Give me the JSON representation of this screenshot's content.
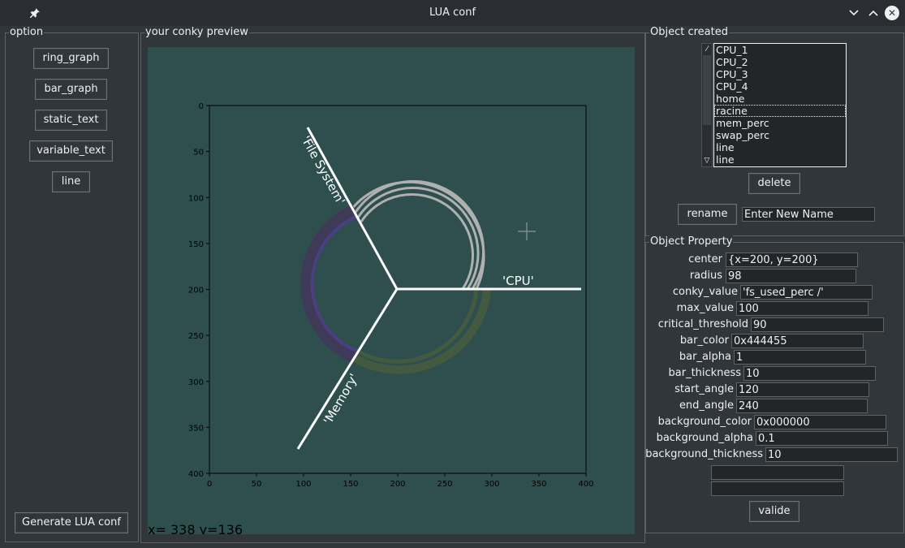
{
  "window": {
    "title": "LUA conf",
    "pin_icon": "pin-icon",
    "minimize_icon": "chevron-down-icon",
    "maximize_icon": "chevron-up-icon",
    "close_icon": "close-icon"
  },
  "option_panel": {
    "label": "option",
    "buttons": [
      "ring_graph",
      "bar_graph",
      "static_text",
      "variable_text",
      "line"
    ],
    "generate_label": "Generate LUA conf"
  },
  "preview": {
    "label": "your conky preview",
    "cursor_readout": "x= 338 y=136",
    "cursor_icon": "crosshair-icon",
    "x_ticks": [
      "0",
      "50",
      "100",
      "150",
      "200",
      "250",
      "300",
      "350",
      "400"
    ],
    "y_ticks": [
      "0",
      "50",
      "100",
      "150",
      "200",
      "250",
      "300",
      "350",
      "400"
    ],
    "text_labels": [
      "'CPU'",
      "'File System'",
      "'Memory'"
    ],
    "colors": {
      "canvas_bg": "#2f4f4f",
      "plot_bg": "#2f4f4f",
      "ring_grey": "#b0b0b0",
      "ring_purple": "#483d6b",
      "ring_green": "#445a40",
      "line": "#ffffff"
    }
  },
  "objects_panel": {
    "label": "Object created",
    "items": [
      "CPU_1",
      "CPU_2",
      "CPU_3",
      "CPU_4",
      "home",
      "racine",
      "mem_perc",
      "swap_perc",
      "line",
      "line"
    ],
    "selected_index": 5,
    "delete_label": "delete",
    "rename_label": "rename",
    "rename_placeholder": "Enter New Name"
  },
  "property_panel": {
    "label": "Object Property",
    "fields": [
      {
        "label": "center",
        "value": "{x=200, y=200}"
      },
      {
        "label": "radius",
        "value": "98"
      },
      {
        "label": "conky_value",
        "value": "'fs_used_perc /'"
      },
      {
        "label": "max_value",
        "value": "100"
      },
      {
        "label": "critical_threshold",
        "value": "90"
      },
      {
        "label": "bar_color",
        "value": "0x444455"
      },
      {
        "label": "bar_alpha",
        "value": "1"
      },
      {
        "label": "bar_thickness",
        "value": "10"
      },
      {
        "label": "start_angle",
        "value": "120"
      },
      {
        "label": "end_angle",
        "value": "240"
      },
      {
        "label": "background_color",
        "value": "0x000000"
      },
      {
        "label": "background_alpha",
        "value": "0.1"
      },
      {
        "label": "background_thickness",
        "value": "10"
      }
    ],
    "extra_fields": [
      "",
      ""
    ],
    "valide_label": "valide"
  }
}
